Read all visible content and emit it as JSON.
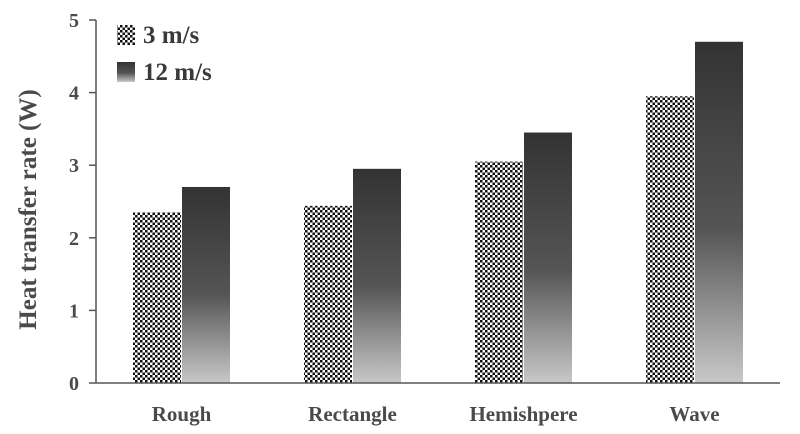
{
  "chart_data": {
    "type": "bar",
    "categories": [
      "Rough",
      "Rectangle",
      "Hemishpere",
      "Wave"
    ],
    "series": [
      {
        "name": "3 m/s",
        "values": [
          2.35,
          2.44,
          3.05,
          3.95
        ],
        "pattern": "dotted-checker"
      },
      {
        "name": "12 m/s",
        "values": [
          2.7,
          2.95,
          3.45,
          4.7
        ],
        "pattern": "gradient-dark-to-light"
      }
    ],
    "title": "",
    "xlabel": "",
    "ylabel": "Heat transfer rate (W)",
    "ylim": [
      0,
      5
    ],
    "yticks": [
      0,
      1,
      2,
      3,
      4,
      5
    ],
    "grid": false,
    "legend_position": "top-left",
    "colors": {
      "axis": "#555555",
      "text": "#4a4a4a",
      "bar_dark": "#333333",
      "bar_light": "#c8c8c8"
    }
  }
}
